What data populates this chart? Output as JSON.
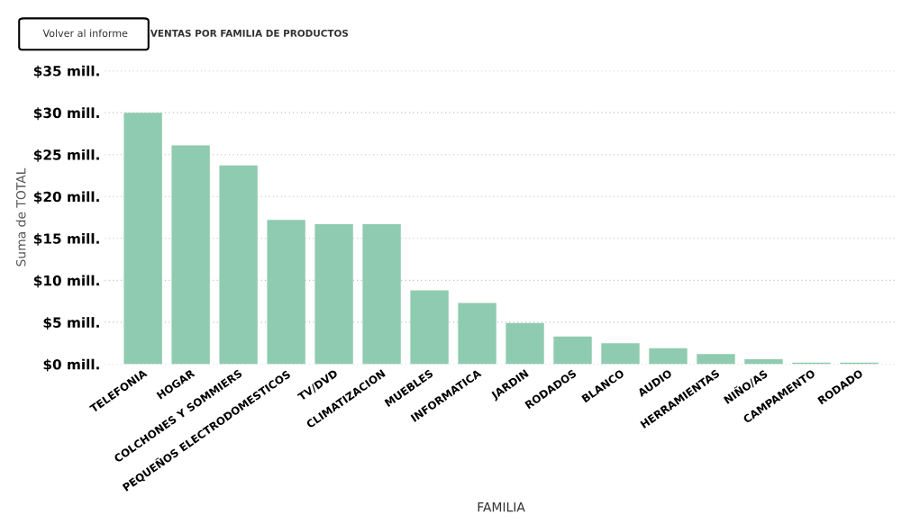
{
  "chart_data": {
    "type": "bar",
    "title": "VENTAS POR FAMILIA DE PRODUCTOS",
    "xlabel": "FAMILIA",
    "ylabel": "Suma de TOTAL",
    "annotations": [
      "Volver al informe"
    ],
    "categories": [
      "TELEFONIA",
      "HOGAR",
      "COLCHONES Y SOMMIERS",
      "PEQUEÑOS ELECTRODOMESTICOS",
      "TV/DVD",
      "CLIMATIZACION",
      "MUEBLES",
      "INFORMATICA",
      "JARDIN",
      "RODADOS",
      "BLANCO",
      "AUDIO",
      "HERRAMIENTAS",
      "NIÑO/AS",
      "CAMPAMENTO",
      "RODADO"
    ],
    "values": [
      30.0,
      26.1,
      23.7,
      17.2,
      16.7,
      16.7,
      8.8,
      7.3,
      4.9,
      3.3,
      2.5,
      1.9,
      1.2,
      0.6,
      0.2,
      0.2
    ],
    "color": "#8fcbb0",
    "ylim": [
      0,
      35
    ],
    "yticks": [
      {
        "value": 0,
        "label": "$0 mill."
      },
      {
        "value": 5,
        "label": "$5 mill."
      },
      {
        "value": 10,
        "label": "$10 mill."
      },
      {
        "value": 15,
        "label": "$15 mill."
      },
      {
        "value": 20,
        "label": "$20 mill."
      },
      {
        "value": 25,
        "label": "$25 mill."
      },
      {
        "value": 30,
        "label": "$30 mill."
      },
      {
        "value": 35,
        "label": "$35 mill."
      }
    ],
    "grid": "y",
    "legend": false
  }
}
